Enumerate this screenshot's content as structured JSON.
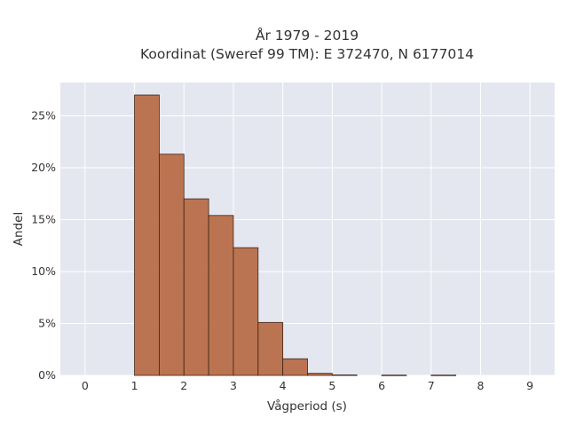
{
  "chart_data": {
    "type": "bar",
    "title_lines": [
      "År 1979 - 2019",
      "Koordinat (Sweref 99 TM): E 372470, N 6177014"
    ],
    "xlabel": "Vågperiod (s)",
    "ylabel": "Andel",
    "x_ticks": [
      "0",
      "1",
      "2",
      "3",
      "4",
      "5",
      "6",
      "7",
      "8",
      "9"
    ],
    "y_ticks": [
      "0%",
      "5%",
      "10%",
      "15%",
      "20%",
      "25%"
    ],
    "xlim": [
      -0.5,
      9.5
    ],
    "ylim": [
      0,
      28.2
    ],
    "bin_width": 0.5,
    "bins": [
      {
        "start": 1.0,
        "value": 27.0
      },
      {
        "start": 1.5,
        "value": 21.3
      },
      {
        "start": 2.0,
        "value": 17.0
      },
      {
        "start": 2.5,
        "value": 15.4
      },
      {
        "start": 3.0,
        "value": 12.3
      },
      {
        "start": 3.5,
        "value": 5.1
      },
      {
        "start": 4.0,
        "value": 1.6
      },
      {
        "start": 4.5,
        "value": 0.2
      },
      {
        "start": 5.0,
        "value": 0.05
      },
      {
        "start": 6.0,
        "value": 0.03
      },
      {
        "start": 7.0,
        "value": 0.03
      }
    ],
    "grid": true,
    "background_color": "#e5e7f0",
    "bar_color": "#b86e48"
  }
}
